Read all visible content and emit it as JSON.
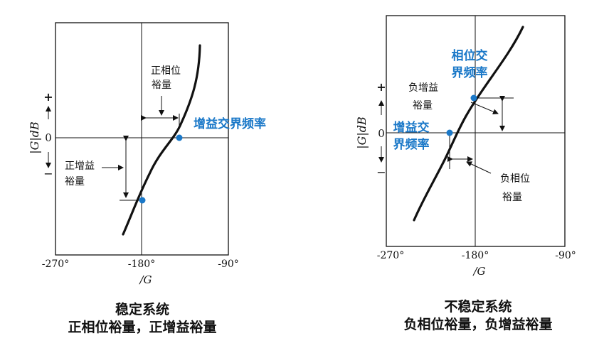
{
  "colors": {
    "ink": "#111111",
    "accent": "#1a78c8"
  },
  "axis_ticks": {
    "left": "-270°",
    "mid": "-180°",
    "right": "-90°"
  },
  "axis_xlabel": "/G",
  "axis_ylabel": "|G|dB",
  "axis_plus": "+",
  "axis_zero": "0",
  "axis_minus": "−",
  "stable": {
    "caption_line1": "稳定系统",
    "caption_line2": "正相位裕量，正增益裕量",
    "phase_margin": [
      "正相位",
      "裕量"
    ],
    "gain_margin": [
      "正增益",
      "裕量"
    ],
    "crossover": "增益交界频率"
  },
  "unstable": {
    "caption_line1": "不稳定系统",
    "caption_line2": "负相位裕量，负增益裕量",
    "phase_crossover": [
      "相位交",
      "界频率"
    ],
    "gain_margin": [
      "负增益",
      "裕量"
    ],
    "gain_crossover": [
      "增益交",
      "界频率"
    ],
    "phase_margin": [
      "负相位",
      "裕量"
    ]
  }
}
